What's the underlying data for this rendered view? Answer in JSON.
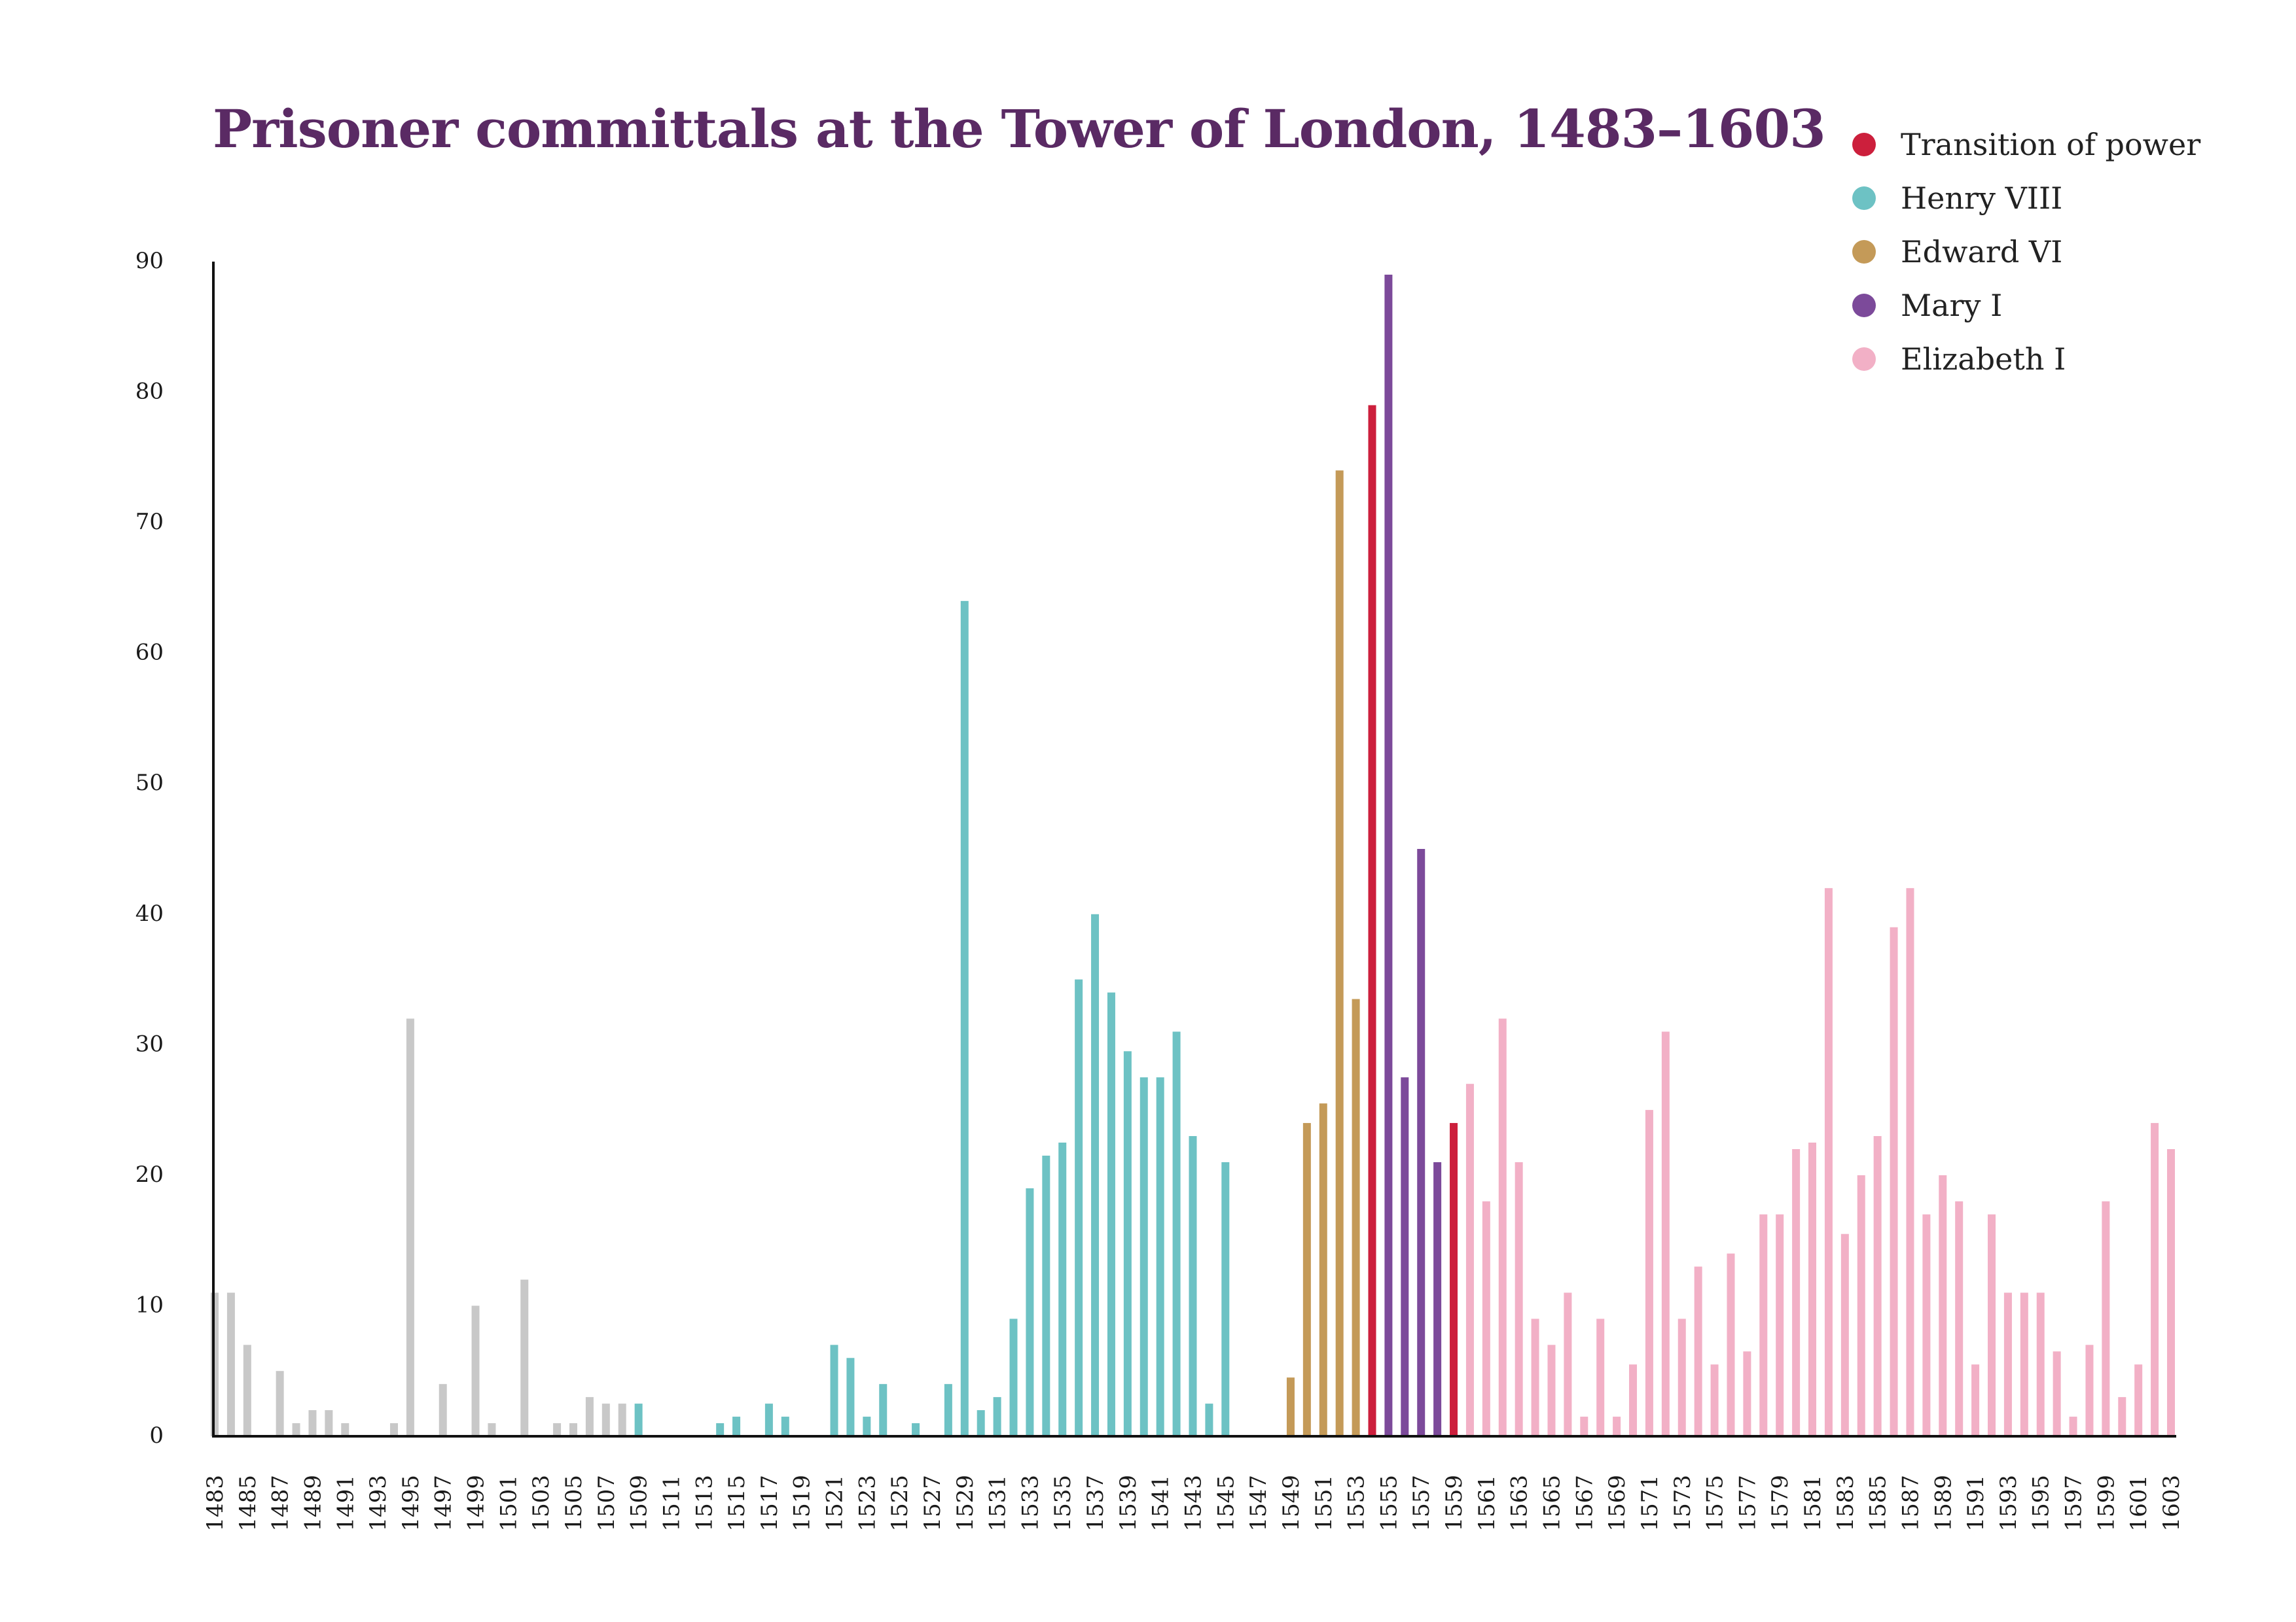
{
  "chart_data": {
    "type": "bar",
    "title": "Prisoner committals at the Tower of London, 1483–1603",
    "xlabel": "",
    "ylabel": "",
    "ylim": [
      0,
      90
    ],
    "yticks": [
      "0",
      "10",
      "20",
      "30",
      "40",
      "50",
      "60",
      "70",
      "80",
      "90"
    ],
    "x_start": 1483,
    "x_end": 1603,
    "x_tick_step": 2,
    "legend": [
      {
        "key": "transition",
        "label": "Transition of power",
        "color": "#cc1f3c"
      },
      {
        "key": "henry",
        "label": "Henry VIII",
        "color": "#6dc2c4"
      },
      {
        "key": "edward",
        "label": "Edward VI",
        "color": "#c49a58"
      },
      {
        "key": "mary",
        "label": "Mary I",
        "color": "#7c4a9a"
      },
      {
        "key": "elizabeth",
        "label": "Elizabeth I",
        "color": "#f2b0c6"
      }
    ],
    "other_color": "#c8c8c8",
    "series": [
      {
        "year": 1483,
        "value": 11,
        "reign": "other"
      },
      {
        "year": 1484,
        "value": 11,
        "reign": "other"
      },
      {
        "year": 1485,
        "value": 7,
        "reign": "other"
      },
      {
        "year": 1487,
        "value": 5,
        "reign": "other"
      },
      {
        "year": 1488,
        "value": 1,
        "reign": "other"
      },
      {
        "year": 1489,
        "value": 2,
        "reign": "other"
      },
      {
        "year": 1490,
        "value": 2,
        "reign": "other"
      },
      {
        "year": 1491,
        "value": 1,
        "reign": "other"
      },
      {
        "year": 1494,
        "value": 1,
        "reign": "other"
      },
      {
        "year": 1495,
        "value": 32,
        "reign": "other"
      },
      {
        "year": 1497,
        "value": 4,
        "reign": "other"
      },
      {
        "year": 1499,
        "value": 10,
        "reign": "other"
      },
      {
        "year": 1500,
        "value": 1,
        "reign": "other"
      },
      {
        "year": 1502,
        "value": 12,
        "reign": "other"
      },
      {
        "year": 1504,
        "value": 1,
        "reign": "other"
      },
      {
        "year": 1505,
        "value": 1,
        "reign": "other"
      },
      {
        "year": 1506,
        "value": 3,
        "reign": "other"
      },
      {
        "year": 1507,
        "value": 2.5,
        "reign": "other"
      },
      {
        "year": 1508,
        "value": 2.5,
        "reign": "other"
      },
      {
        "year": 1509,
        "value": 2.5,
        "reign": "henry"
      },
      {
        "year": 1514,
        "value": 1,
        "reign": "henry"
      },
      {
        "year": 1515,
        "value": 1.5,
        "reign": "henry"
      },
      {
        "year": 1517,
        "value": 2.5,
        "reign": "henry"
      },
      {
        "year": 1518,
        "value": 1.5,
        "reign": "henry"
      },
      {
        "year": 1521,
        "value": 7,
        "reign": "henry"
      },
      {
        "year": 1522,
        "value": 6,
        "reign": "henry"
      },
      {
        "year": 1523,
        "value": 1.5,
        "reign": "henry"
      },
      {
        "year": 1524,
        "value": 4,
        "reign": "henry"
      },
      {
        "year": 1526,
        "value": 1,
        "reign": "henry"
      },
      {
        "year": 1528,
        "value": 4,
        "reign": "henry"
      },
      {
        "year": 1529,
        "value": 64,
        "reign": "henry"
      },
      {
        "year": 1530,
        "value": 2,
        "reign": "henry"
      },
      {
        "year": 1531,
        "value": 3,
        "reign": "henry"
      },
      {
        "year": 1532,
        "value": 9,
        "reign": "henry"
      },
      {
        "year": 1533,
        "value": 19,
        "reign": "henry"
      },
      {
        "year": 1534,
        "value": 21.5,
        "reign": "henry"
      },
      {
        "year": 1535,
        "value": 22.5,
        "reign": "henry"
      },
      {
        "year": 1536,
        "value": 35,
        "reign": "henry"
      },
      {
        "year": 1537,
        "value": 40,
        "reign": "henry"
      },
      {
        "year": 1538,
        "value": 34,
        "reign": "henry"
      },
      {
        "year": 1539,
        "value": 29.5,
        "reign": "henry"
      },
      {
        "year": 1540,
        "value": 27.5,
        "reign": "henry"
      },
      {
        "year": 1541,
        "value": 27.5,
        "reign": "henry"
      },
      {
        "year": 1542,
        "value": 31,
        "reign": "henry"
      },
      {
        "year": 1543,
        "value": 23,
        "reign": "henry"
      },
      {
        "year": 1544,
        "value": 2.5,
        "reign": "henry"
      },
      {
        "year": 1545,
        "value": 21,
        "reign": "henry"
      },
      {
        "year": 1549,
        "value": 4.5,
        "reign": "edward"
      },
      {
        "year": 1550,
        "value": 24,
        "reign": "edward"
      },
      {
        "year": 1551,
        "value": 25.5,
        "reign": "edward"
      },
      {
        "year": 1552,
        "value": 74,
        "reign": "edward"
      },
      {
        "year": 1553,
        "value": 33.5,
        "reign": "edward"
      },
      {
        "year": 1554,
        "value": 79,
        "reign": "transition"
      },
      {
        "year": 1555,
        "value": 89,
        "reign": "mary"
      },
      {
        "year": 1556,
        "value": 27.5,
        "reign": "mary"
      },
      {
        "year": 1557,
        "value": 45,
        "reign": "mary"
      },
      {
        "year": 1558,
        "value": 21,
        "reign": "mary"
      },
      {
        "year": 1559,
        "value": 24,
        "reign": "transition"
      },
      {
        "year": 1560,
        "value": 27,
        "reign": "elizabeth"
      },
      {
        "year": 1561,
        "value": 18,
        "reign": "elizabeth"
      },
      {
        "year": 1562,
        "value": 32,
        "reign": "elizabeth"
      },
      {
        "year": 1563,
        "value": 21,
        "reign": "elizabeth"
      },
      {
        "year": 1564,
        "value": 9,
        "reign": "elizabeth"
      },
      {
        "year": 1565,
        "value": 7,
        "reign": "elizabeth"
      },
      {
        "year": 1566,
        "value": 11,
        "reign": "elizabeth"
      },
      {
        "year": 1567,
        "value": 1.5,
        "reign": "elizabeth"
      },
      {
        "year": 1568,
        "value": 9,
        "reign": "elizabeth"
      },
      {
        "year": 1569,
        "value": 1.5,
        "reign": "elizabeth"
      },
      {
        "year": 1570,
        "value": 5.5,
        "reign": "elizabeth"
      },
      {
        "year": 1571,
        "value": 25,
        "reign": "elizabeth"
      },
      {
        "year": 1572,
        "value": 31,
        "reign": "elizabeth"
      },
      {
        "year": 1573,
        "value": 9,
        "reign": "elizabeth"
      },
      {
        "year": 1574,
        "value": 13,
        "reign": "elizabeth"
      },
      {
        "year": 1575,
        "value": 5.5,
        "reign": "elizabeth"
      },
      {
        "year": 1576,
        "value": 14,
        "reign": "elizabeth"
      },
      {
        "year": 1577,
        "value": 6.5,
        "reign": "elizabeth"
      },
      {
        "year": 1578,
        "value": 17,
        "reign": "elizabeth"
      },
      {
        "year": 1579,
        "value": 17,
        "reign": "elizabeth"
      },
      {
        "year": 1580,
        "value": 22,
        "reign": "elizabeth"
      },
      {
        "year": 1581,
        "value": 22.5,
        "reign": "elizabeth"
      },
      {
        "year": 1582,
        "value": 42,
        "reign": "elizabeth"
      },
      {
        "year": 1583,
        "value": 15.5,
        "reign": "elizabeth"
      },
      {
        "year": 1584,
        "value": 20,
        "reign": "elizabeth"
      },
      {
        "year": 1585,
        "value": 23,
        "reign": "elizabeth"
      },
      {
        "year": 1586,
        "value": 39,
        "reign": "elizabeth"
      },
      {
        "year": 1587,
        "value": 42,
        "reign": "elizabeth"
      },
      {
        "year": 1588,
        "value": 17,
        "reign": "elizabeth"
      },
      {
        "year": 1589,
        "value": 20,
        "reign": "elizabeth"
      },
      {
        "year": 1590,
        "value": 18,
        "reign": "elizabeth"
      },
      {
        "year": 1591,
        "value": 5.5,
        "reign": "elizabeth"
      },
      {
        "year": 1592,
        "value": 17,
        "reign": "elizabeth"
      },
      {
        "year": 1593,
        "value": 11,
        "reign": "elizabeth"
      },
      {
        "year": 1594,
        "value": 11,
        "reign": "elizabeth"
      },
      {
        "year": 1595,
        "value": 11,
        "reign": "elizabeth"
      },
      {
        "year": 1596,
        "value": 6.5,
        "reign": "elizabeth"
      },
      {
        "year": 1597,
        "value": 1.5,
        "reign": "elizabeth"
      },
      {
        "year": 1598,
        "value": 7,
        "reign": "elizabeth"
      },
      {
        "year": 1599,
        "value": 18,
        "reign": "elizabeth"
      },
      {
        "year": 1600,
        "value": 3,
        "reign": "elizabeth"
      },
      {
        "year": 1601,
        "value": 5.5,
        "reign": "elizabeth"
      },
      {
        "year": 1602,
        "value": 24,
        "reign": "elizabeth"
      },
      {
        "year": 1603,
        "value": 22,
        "reign": "elizabeth"
      }
    ]
  }
}
